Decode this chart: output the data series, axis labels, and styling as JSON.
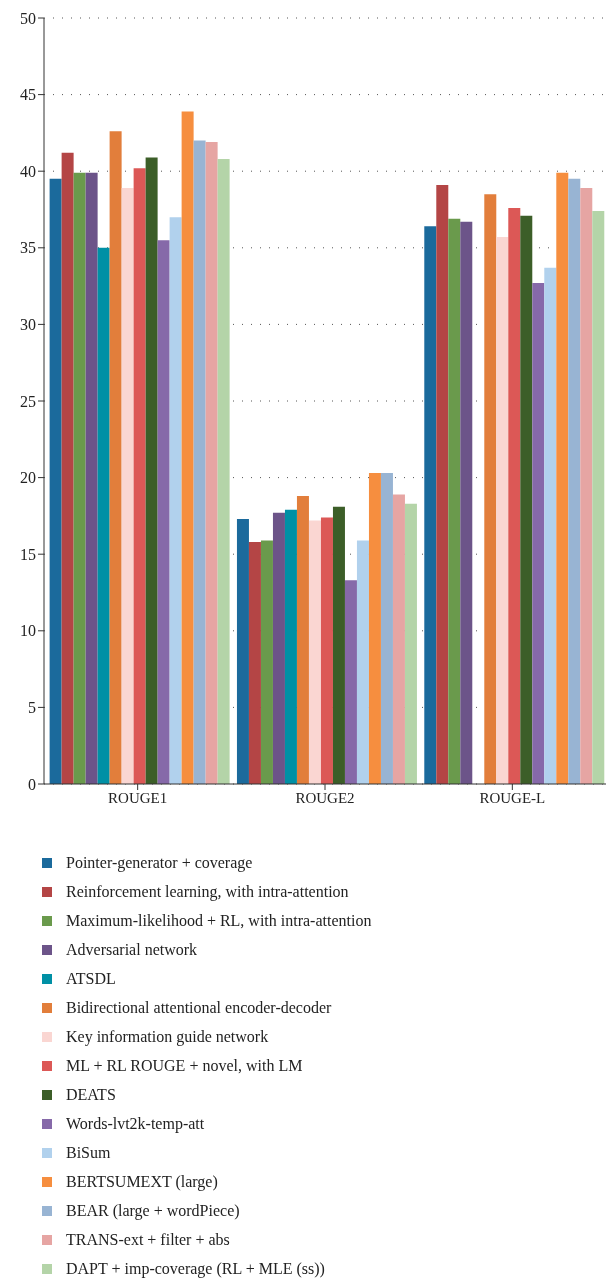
{
  "chart_data": {
    "type": "bar",
    "categories": [
      "ROUGE1",
      "ROUGE2",
      "ROUGE-L"
    ],
    "series": [
      {
        "name": "Pointer-generator + coverage",
        "color": "#1b6a9c",
        "values": [
          39.5,
          17.3,
          36.4
        ]
      },
      {
        "name": "Reinforcement learning, with intra-attention",
        "color": "#b44545",
        "values": [
          41.2,
          15.8,
          39.1
        ]
      },
      {
        "name": "Maximum-likelihood + RL, with intra-attention",
        "color": "#6a9a4c",
        "values": [
          39.9,
          15.9,
          36.9
        ]
      },
      {
        "name": "Adversarial network",
        "color": "#6c5489",
        "values": [
          39.9,
          17.7,
          36.7
        ]
      },
      {
        "name": "ATSDL",
        "color": "#0090a5",
        "values": [
          35.0,
          17.9,
          null
        ]
      },
      {
        "name": "Bidirectional attentional encoder-decoder",
        "color": "#e27e3b",
        "values": [
          42.6,
          18.8,
          38.5
        ]
      },
      {
        "name": "Key information guide network",
        "color": "#fad6d2",
        "values": [
          38.9,
          17.2,
          35.7
        ]
      },
      {
        "name": "ML + RL ROUGE + novel, with LM",
        "color": "#dc5856",
        "values": [
          40.2,
          17.4,
          37.6
        ]
      },
      {
        "name": "DEATS",
        "color": "#3c5e28",
        "values": [
          40.9,
          18.1,
          37.1
        ]
      },
      {
        "name": "Words-lvt2k-temp-att",
        "color": "#8669a9",
        "values": [
          35.5,
          13.3,
          32.7
        ]
      },
      {
        "name": "BiSum",
        "color": "#b1d1ed",
        "values": [
          37.0,
          15.9,
          33.7
        ]
      },
      {
        "name": "BERTSUMEXT (large)",
        "color": "#f68e3f",
        "values": [
          43.9,
          20.3,
          39.9
        ]
      },
      {
        "name": "BEAR (large + wordPiece)",
        "color": "#98b4d3",
        "values": [
          42.0,
          20.3,
          39.5
        ]
      },
      {
        "name": "TRANS-ext + filter + abs",
        "color": "#e6a5a3",
        "values": [
          41.9,
          18.9,
          38.9
        ]
      },
      {
        "name": "DAPT + imp-coverage (RL + MLE (ss))",
        "color": "#b4d4a8",
        "values": [
          40.8,
          18.3,
          37.4
        ]
      }
    ],
    "ylim": [
      0,
      50
    ],
    "yticks": [
      0,
      5,
      10,
      15,
      20,
      25,
      30,
      35,
      40,
      45,
      50
    ],
    "grid": "y",
    "legend": "bottom"
  }
}
